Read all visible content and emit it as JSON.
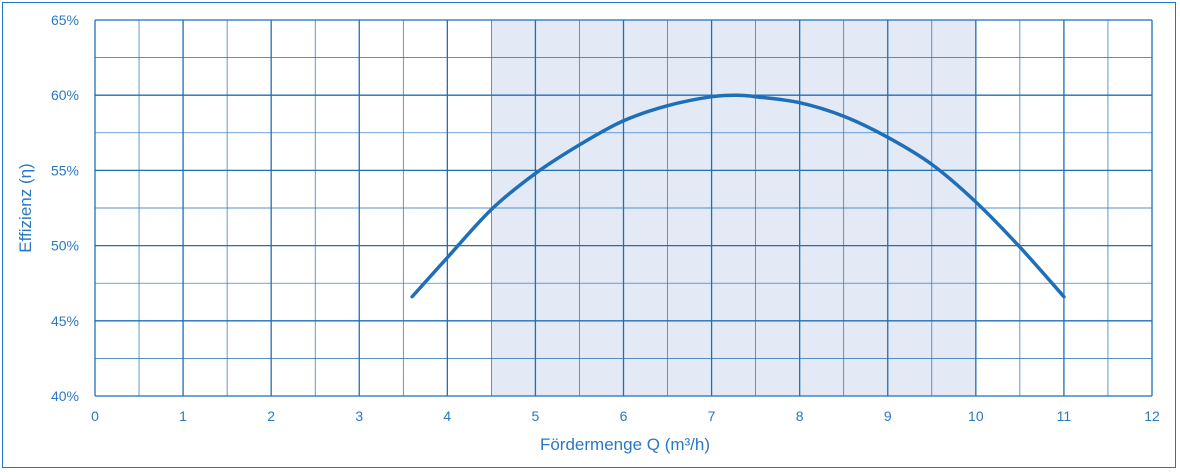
{
  "chart_data": {
    "type": "line",
    "xlabel": "Fördermenge Q (m³/h)",
    "ylabel": "Effizienz (η)",
    "xlim": [
      0,
      12
    ],
    "ylim": [
      40,
      65
    ],
    "x_ticks": [
      "0",
      "1",
      "2",
      "3",
      "4",
      "5",
      "6",
      "7",
      "8",
      "9",
      "10",
      "11",
      "12"
    ],
    "y_ticks": [
      "40%",
      "45%",
      "50%",
      "55%",
      "60%",
      "65%"
    ],
    "highlight_range": [
      4.5,
      10
    ],
    "grid": true,
    "colors": {
      "line": "#1f6fb8",
      "grid": "#1f6fb8",
      "highlight": "#e3eaf6",
      "text": "#2b78c2"
    },
    "series": [
      {
        "x": [
          3.6,
          4.0,
          4.5,
          5.0,
          5.5,
          6.0,
          6.5,
          7.0,
          7.3,
          7.5,
          8.0,
          8.5,
          9.0,
          9.5,
          10.0,
          10.5,
          11.0
        ],
        "values": [
          46.6,
          49.2,
          52.4,
          54.8,
          56.7,
          58.3,
          59.3,
          59.9,
          60.0,
          59.9,
          59.5,
          58.6,
          57.2,
          55.4,
          52.9,
          49.9,
          46.6
        ]
      }
    ]
  }
}
